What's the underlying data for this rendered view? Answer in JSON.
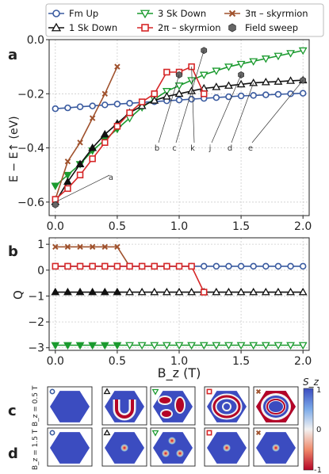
{
  "panel_labels": {
    "a": "a",
    "b": "b",
    "c": "c",
    "d": "d"
  },
  "legend": [
    {
      "name": "Fm Up",
      "marker": "circle-open",
      "color": "#3a5ba0"
    },
    {
      "name": "3 Sk Down",
      "marker": "tri-down-open",
      "color": "#1a9a2e"
    },
    {
      "name": "3π – skyrmion",
      "marker": "x",
      "color": "#a0522d"
    },
    {
      "name": "1 Sk Down",
      "marker": "tri-up-open",
      "color": "#111111"
    },
    {
      "name": "2π – skyrmion",
      "marker": "square-open",
      "color": "#d62728"
    },
    {
      "name": "Field sweep",
      "marker": "hexagon",
      "color": "#666666"
    }
  ],
  "annotations": [
    "a",
    "b",
    "c",
    "k",
    "j",
    "d",
    "e"
  ],
  "sz_bar": {
    "title": "S_z",
    "ticks": [
      "1",
      "0",
      "-1"
    ]
  },
  "row_labels": {
    "c": "B_z = 0.5 T",
    "d": "B_z = 1.5 T"
  },
  "chart_data": [
    {
      "type": "line",
      "panel": "a",
      "xlabel": "",
      "ylabel": "E − E↑ (eV)",
      "xlim": [
        -0.05,
        2.05
      ],
      "ylim": [
        -0.65,
        0.0
      ],
      "xticks": [
        0.0,
        0.5,
        1.0,
        1.5,
        2.0
      ],
      "xtick_labels": [
        "0.0",
        "0.5",
        "1.0",
        "1.5",
        "2.0"
      ],
      "yticks": [
        -0.6,
        -0.4,
        -0.2,
        0.0
      ],
      "ytick_labels": [
        "−0.6",
        "−0.4",
        "−0.2",
        "0.0"
      ],
      "grid": true,
      "series": [
        {
          "name": "Fm Up",
          "x": [
            0.0,
            0.1,
            0.2,
            0.3,
            0.4,
            0.5,
            0.6,
            0.7,
            0.8,
            0.9,
            1.0,
            1.1,
            1.2,
            1.3,
            1.4,
            1.5,
            1.6,
            1.7,
            1.8,
            1.9,
            2.0
          ],
          "y": [
            -0.255,
            -0.252,
            -0.248,
            -0.245,
            -0.241,
            -0.238,
            -0.235,
            -0.232,
            -0.229,
            -0.226,
            -0.223,
            -0.22,
            -0.217,
            -0.214,
            -0.211,
            -0.208,
            -0.206,
            -0.204,
            -0.202,
            -0.2,
            -0.198
          ]
        },
        {
          "name": "3 Sk Down",
          "x": [
            0.0,
            0.1,
            0.2,
            0.3,
            0.4,
            0.5,
            0.6,
            0.7,
            0.8,
            0.9,
            1.0,
            1.1,
            1.2,
            1.3,
            1.4,
            1.5,
            1.6,
            1.7,
            1.8,
            1.9,
            2.0
          ],
          "y": [
            -0.54,
            -0.5,
            -0.46,
            -0.41,
            -0.37,
            -0.33,
            -0.29,
            -0.25,
            -0.22,
            -0.19,
            -0.17,
            -0.15,
            -0.13,
            -0.115,
            -0.1,
            -0.09,
            -0.08,
            -0.07,
            -0.06,
            -0.05,
            -0.04
          ]
        },
        {
          "name": "3π – skyrmion",
          "x": [
            0.0,
            0.1,
            0.2,
            0.3,
            0.4,
            0.5
          ],
          "y": [
            -0.59,
            -0.45,
            -0.38,
            -0.29,
            -0.2,
            -0.1
          ]
        },
        {
          "name": "1 Sk Down",
          "x": [
            0.0,
            0.1,
            0.2,
            0.3,
            0.4,
            0.5,
            0.6,
            0.7,
            0.8,
            0.9,
            1.0,
            1.1,
            1.2,
            1.3,
            1.4,
            1.5,
            1.6,
            1.7,
            1.8,
            1.9,
            2.0
          ],
          "y": [
            -0.6,
            -0.525,
            -0.46,
            -0.4,
            -0.35,
            -0.31,
            -0.27,
            -0.245,
            -0.225,
            -0.21,
            -0.2,
            -0.19,
            -0.18,
            -0.175,
            -0.17,
            -0.165,
            -0.16,
            -0.157,
            -0.155,
            -0.152,
            -0.15
          ]
        },
        {
          "name": "2π – skyrmion",
          "x": [
            0.0,
            0.1,
            0.2,
            0.3,
            0.4,
            0.5,
            0.6,
            0.7,
            0.8,
            0.9,
            1.0,
            1.1,
            1.2
          ],
          "y": [
            -0.59,
            -0.55,
            -0.5,
            -0.44,
            -0.38,
            -0.32,
            -0.27,
            -0.23,
            -0.2,
            -0.12,
            -0.12,
            -0.1,
            -0.2
          ]
        },
        {
          "name": "Field sweep",
          "x": [
            0.0,
            1.0,
            1.2,
            1.5,
            2.0
          ],
          "y": [
            -0.61,
            -0.13,
            -0.04,
            -0.13,
            -0.15
          ]
        }
      ]
    },
    {
      "type": "line",
      "panel": "b",
      "xlabel": "B_z (T)",
      "ylabel": "Q",
      "xlim": [
        -0.05,
        2.05
      ],
      "ylim": [
        -3.1,
        1.25
      ],
      "xticks": [
        0.0,
        0.5,
        1.0,
        1.5,
        2.0
      ],
      "xtick_labels": [
        "0.0",
        "0.5",
        "1.0",
        "1.5",
        "2.0"
      ],
      "yticks": [
        -3,
        -2,
        -1,
        0,
        1
      ],
      "ytick_labels": [
        "−3",
        "−2",
        "−1",
        "0",
        "1"
      ],
      "grid": true,
      "series": [
        {
          "name": "Fm Up",
          "x": [
            0.0,
            0.1,
            0.2,
            0.3,
            0.4,
            0.5,
            0.6,
            0.7,
            0.8,
            0.9,
            1.0,
            1.1,
            1.2,
            1.3,
            1.4,
            1.5,
            1.6,
            1.7,
            1.8,
            1.9,
            2.0
          ],
          "y": [
            0.15,
            0.15,
            0.15,
            0.15,
            0.15,
            0.15,
            0.15,
            0.15,
            0.15,
            0.15,
            0.15,
            0.15,
            0.15,
            0.15,
            0.15,
            0.15,
            0.15,
            0.15,
            0.15,
            0.15,
            0.15
          ]
        },
        {
          "name": "3 Sk Down",
          "x": [
            0.0,
            0.1,
            0.2,
            0.3,
            0.4,
            0.5,
            0.6,
            0.7,
            0.8,
            0.9,
            1.0,
            1.1,
            1.2,
            1.3,
            1.4,
            1.5,
            1.6,
            1.7,
            1.8,
            1.9,
            2.0
          ],
          "y": [
            -2.9,
            -2.9,
            -2.9,
            -2.9,
            -2.9,
            -2.9,
            -2.9,
            -2.9,
            -2.9,
            -2.9,
            -2.9,
            -2.9,
            -2.9,
            -2.9,
            -2.9,
            -2.9,
            -2.9,
            -2.9,
            -2.9,
            -2.9,
            -2.9
          ]
        },
        {
          "name": "3π – skyrmion",
          "x": [
            0.0,
            0.1,
            0.2,
            0.3,
            0.4,
            0.5,
            0.6
          ],
          "y": [
            0.9,
            0.9,
            0.9,
            0.9,
            0.9,
            0.9,
            0.15
          ]
        },
        {
          "name": "1 Sk Down",
          "x": [
            0.0,
            0.1,
            0.2,
            0.3,
            0.4,
            0.5,
            0.6,
            0.7,
            0.8,
            0.9,
            1.0,
            1.1,
            1.2,
            1.3,
            1.4,
            1.5,
            1.6,
            1.7,
            1.8,
            1.9,
            2.0
          ],
          "y": [
            -0.85,
            -0.85,
            -0.85,
            -0.85,
            -0.85,
            -0.85,
            -0.85,
            -0.85,
            -0.85,
            -0.85,
            -0.85,
            -0.85,
            -0.85,
            -0.85,
            -0.85,
            -0.85,
            -0.85,
            -0.85,
            -0.85,
            -0.85,
            -0.85
          ]
        },
        {
          "name": "2π – skyrmion",
          "x": [
            0.0,
            0.1,
            0.2,
            0.3,
            0.4,
            0.5,
            0.6,
            0.7,
            0.8,
            0.9,
            1.0,
            1.1,
            1.2
          ],
          "y": [
            0.15,
            0.15,
            0.15,
            0.15,
            0.15,
            0.15,
            0.15,
            0.15,
            0.15,
            0.15,
            0.15,
            0.15,
            -0.85
          ]
        }
      ]
    }
  ]
}
